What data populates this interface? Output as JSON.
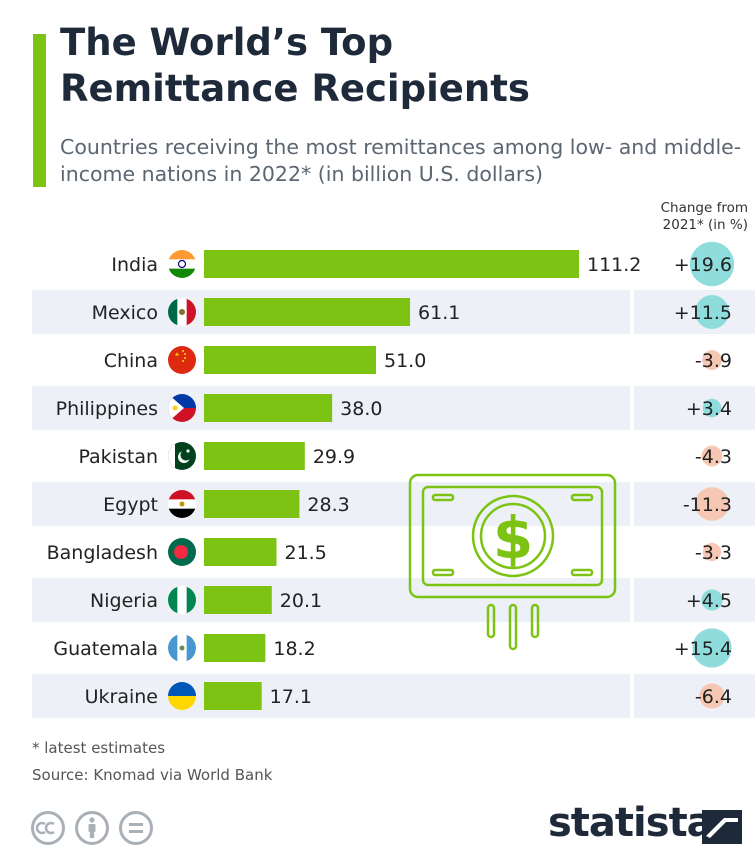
{
  "header": {
    "title_line1": "The World’s Top",
    "title_line2": "Remittance Recipients",
    "subtitle": "Countries receiving the most remittances among low- and middle- income nations in 2022* (in billion U.S. dollars)",
    "change_header_line1": "Change from",
    "change_header_line2": "2021* (in %)"
  },
  "chart_data": {
    "type": "bar",
    "orientation": "horizontal",
    "categories": [
      "India",
      "Mexico",
      "China",
      "Philippines",
      "Pakistan",
      "Egypt",
      "Bangladesh",
      "Nigeria",
      "Guatemala",
      "Ukraine"
    ],
    "series": [
      {
        "values": [
          111.2,
          61.1,
          51.0,
          38.0,
          29.9,
          28.3,
          21.5,
          20.1,
          18.2,
          17.1
        ],
        "labels": [
          "111.2",
          "61.1",
          "51.0",
          "38.0",
          "29.9",
          "28.3",
          "21.5",
          "20.1",
          "18.2",
          "17.1"
        ]
      }
    ],
    "change_from_2021": {
      "values": [
        19.6,
        11.5,
        -3.9,
        3.4,
        -4.3,
        -11.3,
        -3.3,
        4.5,
        15.4,
        -6.4
      ],
      "labels": [
        "+19.6",
        "+11.5",
        "-3.9",
        "+3.4",
        "-4.3",
        "-11.3",
        "-3.3",
        "+4.5",
        "+15.4",
        "-6.4"
      ]
    },
    "flag_icons": [
      "india-flag-icon",
      "mexico-flag-icon",
      "china-flag-icon",
      "philippines-flag-icon",
      "pakistan-flag-icon",
      "egypt-flag-icon",
      "bangladesh-flag-icon",
      "nigeria-flag-icon",
      "guatemala-flag-icon",
      "ukraine-flag-icon"
    ],
    "xlim": [
      0,
      111.2
    ],
    "colors": {
      "bar": "#7dc313",
      "positive": "#8fdcdc",
      "negative": "#f6c7b3",
      "stripe": "#edf0f7"
    }
  },
  "footer": {
    "footnote": "* latest estimates",
    "source": "Source: Knomad via World Bank",
    "brand": "statista"
  }
}
